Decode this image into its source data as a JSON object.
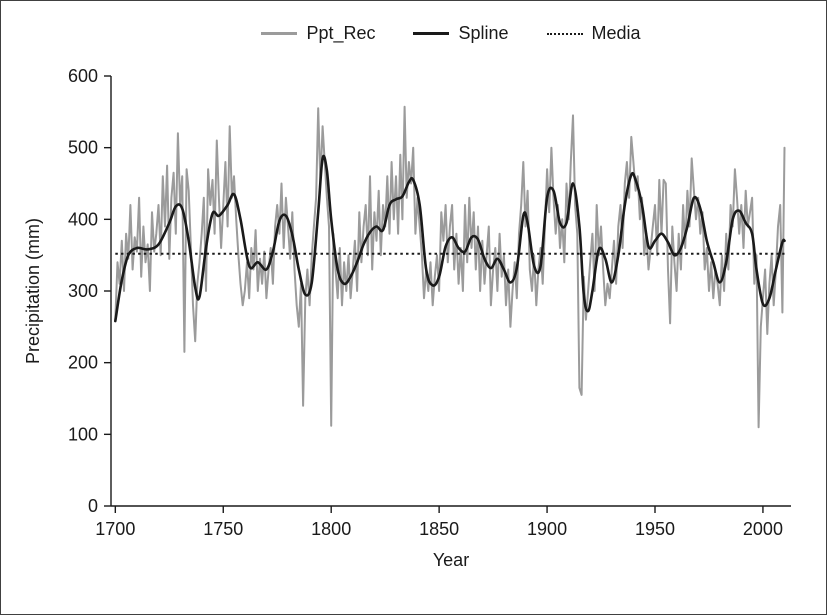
{
  "figure": {
    "background": "#ffffff",
    "border_color": "#404040"
  },
  "legend": {
    "items": [
      {
        "label": "Ppt_Rec",
        "style": "solid",
        "color": "#9b9b9b"
      },
      {
        "label": "Spline",
        "style": "solid",
        "color": "#1a1a1a"
      },
      {
        "label": "Media",
        "style": "dotted",
        "color": "#1a1a1a"
      }
    ]
  },
  "chart_data": {
    "type": "line",
    "title": "",
    "xlabel": "Year",
    "ylabel": "Precipitation (mm)",
    "xlim": [
      1698,
      2013
    ],
    "ylim": [
      0,
      600
    ],
    "x_ticks": [
      1700,
      1750,
      1800,
      1850,
      1900,
      1950,
      2000
    ],
    "y_ticks": [
      0,
      100,
      200,
      300,
      400,
      500,
      600
    ],
    "grid": false,
    "legend_position": "top",
    "axis_color": "#1a1a1a",
    "series": [
      {
        "name": "Ppt_Rec",
        "kind": "line",
        "color": "#9b9b9b",
        "width": 2,
        "x_start": 1700,
        "x_step": 1,
        "values": [
          260,
          340,
          310,
          370,
          300,
          380,
          345,
          420,
          330,
          375,
          355,
          430,
          320,
          390,
          340,
          365,
          300,
          410,
          355,
          380,
          420,
          350,
          460,
          390,
          475,
          345,
          430,
          465,
          380,
          520,
          420,
          460,
          215,
          470,
          440,
          360,
          280,
          230,
          310,
          340,
          380,
          430,
          300,
          470,
          420,
          455,
          380,
          510,
          430,
          360,
          420,
          480,
          390,
          530,
          430,
          460,
          400,
          350,
          310,
          280,
          300,
          340,
          290,
          360,
          330,
          385,
          300,
          345,
          310,
          355,
          290,
          330,
          360,
          310,
          390,
          420,
          380,
          450,
          360,
          430,
          390,
          345,
          410,
          330,
          280,
          250,
          310,
          140,
          290,
          330,
          280,
          350,
          390,
          430,
          555,
          450,
          530,
          480,
          430,
          390,
          112,
          380,
          330,
          290,
          360,
          280,
          340,
          300,
          350,
          290,
          330,
          370,
          300,
          410,
          340,
          390,
          420,
          350,
          460,
          330,
          410,
          370,
          440,
          350,
          420,
          390,
          460,
          380,
          480,
          400,
          460,
          380,
          490,
          400,
          557,
          430,
          480,
          450,
          500,
          380,
          430,
          390,
          350,
          290,
          330,
          300,
          340,
          280,
          320,
          350,
          300,
          410,
          370,
          420,
          340,
          390,
          420,
          330,
          380,
          310,
          360,
          300,
          420,
          340,
          430,
          360,
          410,
          330,
          390,
          300,
          370,
          310,
          350,
          390,
          280,
          330,
          360,
          300,
          380,
          320,
          350,
          280,
          330,
          250,
          300,
          340,
          290,
          380,
          420,
          480,
          390,
          440,
          330,
          300,
          350,
          280,
          330,
          360,
          310,
          390,
          470,
          410,
          500,
          430,
          380,
          420,
          360,
          400,
          340,
          450,
          400,
          480,
          545,
          420,
          380,
          165,
          155,
          320,
          260,
          300,
          340,
          380,
          300,
          420,
          350,
          390,
          330,
          280,
          310,
          290,
          330,
          370,
          310,
          390,
          420,
          360,
          450,
          480,
          430,
          515,
          480,
          440,
          460,
          400,
          430,
          350,
          380,
          330,
          360,
          390,
          420,
          350,
          455,
          380,
          455,
          450,
          330,
          255,
          390,
          340,
          300,
          380,
          330,
          420,
          360,
          440,
          390,
          485,
          440,
          400,
          430,
          380,
          410,
          330,
          360,
          300,
          340,
          290,
          330,
          310,
          280,
          350,
          300,
          380,
          330,
          420,
          390,
          470,
          430,
          380,
          420,
          360,
          440,
          390,
          410,
          430,
          310,
          350,
          110,
          250,
          290,
          330,
          240,
          310,
          350,
          280,
          330,
          390,
          420,
          270,
          500
        ]
      },
      {
        "name": "Spline",
        "kind": "smooth-line",
        "color": "#1a1a1a",
        "width": 2.6,
        "points": [
          [
            1700,
            258
          ],
          [
            1703,
            315
          ],
          [
            1706,
            350
          ],
          [
            1710,
            360
          ],
          [
            1715,
            358
          ],
          [
            1720,
            365
          ],
          [
            1725,
            395
          ],
          [
            1728,
            418
          ],
          [
            1731,
            415
          ],
          [
            1734,
            370
          ],
          [
            1737,
            305
          ],
          [
            1739,
            292
          ],
          [
            1742,
            360
          ],
          [
            1745,
            408
          ],
          [
            1748,
            405
          ],
          [
            1752,
            420
          ],
          [
            1755,
            435
          ],
          [
            1758,
            400
          ],
          [
            1762,
            335
          ],
          [
            1766,
            340
          ],
          [
            1770,
            330
          ],
          [
            1773,
            355
          ],
          [
            1776,
            398
          ],
          [
            1779,
            405
          ],
          [
            1782,
            378
          ],
          [
            1785,
            330
          ],
          [
            1788,
            295
          ],
          [
            1791,
            312
          ],
          [
            1794,
            410
          ],
          [
            1796,
            485
          ],
          [
            1798,
            468
          ],
          [
            1800,
            400
          ],
          [
            1803,
            330
          ],
          [
            1806,
            310
          ],
          [
            1809,
            320
          ],
          [
            1812,
            340
          ],
          [
            1815,
            365
          ],
          [
            1818,
            382
          ],
          [
            1821,
            390
          ],
          [
            1824,
            385
          ],
          [
            1827,
            420
          ],
          [
            1830,
            428
          ],
          [
            1833,
            432
          ],
          [
            1836,
            452
          ],
          [
            1838,
            455
          ],
          [
            1841,
            420
          ],
          [
            1844,
            330
          ],
          [
            1847,
            308
          ],
          [
            1850,
            320
          ],
          [
            1853,
            362
          ],
          [
            1856,
            375
          ],
          [
            1859,
            360
          ],
          [
            1862,
            355
          ],
          [
            1865,
            375
          ],
          [
            1868,
            372
          ],
          [
            1871,
            345
          ],
          [
            1874,
            332
          ],
          [
            1877,
            345
          ],
          [
            1880,
            330
          ],
          [
            1883,
            312
          ],
          [
            1886,
            332
          ],
          [
            1889,
            405
          ],
          [
            1891,
            395
          ],
          [
            1894,
            335
          ],
          [
            1897,
            335
          ],
          [
            1900,
            430
          ],
          [
            1903,
            440
          ],
          [
            1906,
            395
          ],
          [
            1909,
            395
          ],
          [
            1912,
            450
          ],
          [
            1915,
            390
          ],
          [
            1917,
            295
          ],
          [
            1919,
            272
          ],
          [
            1921,
            300
          ],
          [
            1924,
            358
          ],
          [
            1927,
            345
          ],
          [
            1930,
            312
          ],
          [
            1933,
            350
          ],
          [
            1936,
            420
          ],
          [
            1939,
            462
          ],
          [
            1941,
            455
          ],
          [
            1944,
            420
          ],
          [
            1947,
            362
          ],
          [
            1950,
            370
          ],
          [
            1953,
            380
          ],
          [
            1956,
            368
          ],
          [
            1959,
            350
          ],
          [
            1962,
            360
          ],
          [
            1965,
            390
          ],
          [
            1968,
            430
          ],
          [
            1971,
            415
          ],
          [
            1974,
            370
          ],
          [
            1977,
            340
          ],
          [
            1980,
            312
          ],
          [
            1983,
            340
          ],
          [
            1986,
            400
          ],
          [
            1989,
            412
          ],
          [
            1992,
            395
          ],
          [
            1995,
            380
          ],
          [
            1997,
            330
          ],
          [
            2000,
            282
          ],
          [
            2003,
            290
          ],
          [
            2006,
            330
          ],
          [
            2009,
            368
          ],
          [
            2010,
            370
          ]
        ]
      },
      {
        "name": "Media",
        "kind": "hline",
        "color": "#1a1a1a",
        "width": 2,
        "dash": "dotted",
        "value": 352,
        "x_from": 1700,
        "x_to": 2010
      }
    ]
  }
}
